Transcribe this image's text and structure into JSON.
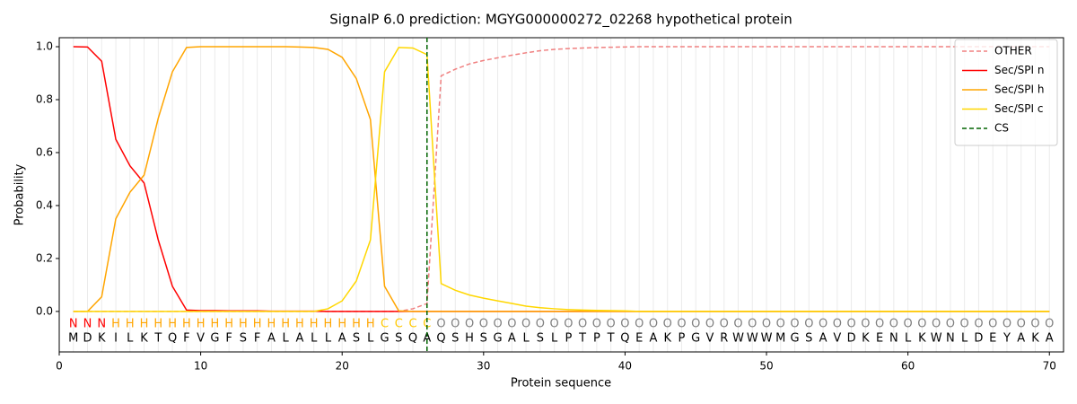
{
  "chart_data": {
    "type": "line",
    "title": "SignalP 6.0 prediction: MGYG000000272_02268 hypothetical protein",
    "xlabel": "Protein sequence",
    "ylabel": "Probability",
    "x": [
      1,
      2,
      3,
      4,
      5,
      6,
      7,
      8,
      9,
      10,
      11,
      12,
      13,
      14,
      15,
      16,
      17,
      18,
      19,
      20,
      21,
      22,
      23,
      24,
      25,
      26,
      27,
      28,
      29,
      30,
      31,
      32,
      33,
      34,
      35,
      36,
      37,
      38,
      39,
      40,
      41,
      42,
      43,
      44,
      45,
      46,
      47,
      48,
      49,
      50,
      51,
      52,
      53,
      54,
      55,
      56,
      57,
      58,
      59,
      60,
      61,
      62,
      63,
      64,
      65,
      66,
      67,
      68,
      69,
      70
    ],
    "residues": [
      "M",
      "D",
      "K",
      "I",
      "L",
      "K",
      "T",
      "Q",
      "F",
      "V",
      "G",
      "F",
      "S",
      "F",
      "A",
      "L",
      "A",
      "L",
      "L",
      "A",
      "S",
      "L",
      "G",
      "S",
      "Q",
      "A",
      "Q",
      "S",
      "H",
      "S",
      "G",
      "A",
      "L",
      "S",
      "L",
      "P",
      "T",
      "P",
      "T",
      "Q",
      "E",
      "A",
      "K",
      "P",
      "G",
      "V",
      "R",
      "W",
      "W",
      "W",
      "M",
      "G",
      "S",
      "A",
      "V",
      "D",
      "K",
      "E",
      "N",
      "L",
      "K",
      "W",
      "N",
      "L",
      "D",
      "E",
      "Y",
      "A",
      "K",
      "A"
    ],
    "region_labels": [
      "N",
      "N",
      "N",
      "H",
      "H",
      "H",
      "H",
      "H",
      "H",
      "H",
      "H",
      "H",
      "H",
      "H",
      "H",
      "H",
      "H",
      "H",
      "H",
      "H",
      "H",
      "H",
      "C",
      "C",
      "C",
      "C",
      "O",
      "O",
      "O",
      "O",
      "O",
      "O",
      "O",
      "O",
      "O",
      "O",
      "O",
      "O",
      "O",
      "O",
      "O",
      "O",
      "O",
      "O",
      "O",
      "O",
      "O",
      "O",
      "O",
      "O",
      "O",
      "O",
      "O",
      "O",
      "O",
      "O",
      "O",
      "O",
      "O",
      "O",
      "O",
      "O",
      "O",
      "O",
      "O",
      "O",
      "O",
      "O",
      "O",
      "O"
    ],
    "region_colors": {
      "N": "#ff0000",
      "H": "#ffa500",
      "C": "#ffc800",
      "O": "#808080"
    },
    "series": [
      {
        "name": "OTHER",
        "color": "#f08080",
        "dashed": true,
        "values": [
          0,
          0,
          0,
          0,
          0,
          0,
          0,
          0,
          0,
          0,
          0,
          0,
          0,
          0,
          0,
          0,
          0,
          0,
          0,
          0,
          0,
          0,
          0,
          0,
          0.01,
          0.03,
          0.89,
          0.915,
          0.935,
          0.948,
          0.958,
          0.968,
          0.977,
          0.985,
          0.99,
          0.993,
          0.995,
          0.997,
          0.998,
          0.999,
          1,
          1,
          1,
          1,
          1,
          1,
          1,
          1,
          1,
          1,
          1,
          1,
          1,
          1,
          1,
          1,
          1,
          1,
          1,
          1,
          1,
          1,
          1,
          1,
          1,
          1,
          1,
          1,
          1,
          1
        ]
      },
      {
        "name": "Sec/SPI n",
        "color": "#ff0000",
        "values": [
          1,
          0.999,
          0.945,
          0.65,
          0.55,
          0.485,
          0.27,
          0.095,
          0.005,
          0.003,
          0.003,
          0.002,
          0.002,
          0.002,
          0.001,
          0.001,
          0.001,
          0.001,
          0,
          0,
          0,
          0,
          0,
          0,
          0,
          0,
          0,
          0,
          0,
          0,
          0,
          0,
          0,
          0,
          0,
          0,
          0,
          0,
          0,
          0,
          0,
          0,
          0,
          0,
          0,
          0,
          0,
          0,
          0,
          0,
          0,
          0,
          0,
          0,
          0,
          0,
          0,
          0,
          0,
          0,
          0,
          0,
          0,
          0,
          0,
          0,
          0,
          0,
          0,
          0
        ]
      },
      {
        "name": "Sec/SPI h",
        "color": "#ffa500",
        "values": [
          0,
          0,
          0.055,
          0.35,
          0.45,
          0.515,
          0.73,
          0.905,
          0.997,
          1,
          1,
          1,
          1,
          1,
          1,
          1,
          0.999,
          0.997,
          0.99,
          0.96,
          0.88,
          0.725,
          0.095,
          0.002,
          0,
          0,
          0,
          0,
          0,
          0,
          0,
          0,
          0,
          0,
          0,
          0,
          0,
          0,
          0,
          0,
          0,
          0,
          0,
          0,
          0,
          0,
          0,
          0,
          0,
          0,
          0,
          0,
          0,
          0,
          0,
          0,
          0,
          0,
          0,
          0,
          0,
          0,
          0,
          0,
          0,
          0,
          0,
          0,
          0,
          0
        ]
      },
      {
        "name": "Sec/SPI c",
        "color": "#ffd700",
        "values": [
          0,
          0,
          0,
          0,
          0,
          0,
          0,
          0,
          0,
          0,
          0,
          0,
          0,
          0,
          0,
          0,
          0,
          0,
          0.01,
          0.04,
          0.115,
          0.27,
          0.905,
          0.997,
          0.995,
          0.97,
          0.105,
          0.08,
          0.062,
          0.05,
          0.04,
          0.03,
          0.02,
          0.014,
          0.01,
          0.007,
          0.005,
          0.004,
          0.003,
          0.002,
          0,
          0,
          0,
          0,
          0,
          0,
          0,
          0,
          0,
          0,
          0,
          0,
          0,
          0,
          0,
          0,
          0,
          0,
          0,
          0,
          0,
          0,
          0,
          0,
          0,
          0,
          0,
          0,
          0,
          0
        ]
      }
    ],
    "markers": [
      {
        "name": "CS",
        "x": 26,
        "color": "#006400"
      }
    ],
    "xlim": [
      0,
      71
    ],
    "ylim": [
      -0.153,
      1.034
    ],
    "xticks": [
      0,
      10,
      20,
      30,
      40,
      50,
      60,
      70
    ],
    "yticks": [
      {
        "value": 0,
        "label": "0.0"
      },
      0.2,
      0.4,
      0.6,
      0.8,
      {
        "value": 1,
        "label": "1.0"
      }
    ],
    "legend": "upper right"
  }
}
